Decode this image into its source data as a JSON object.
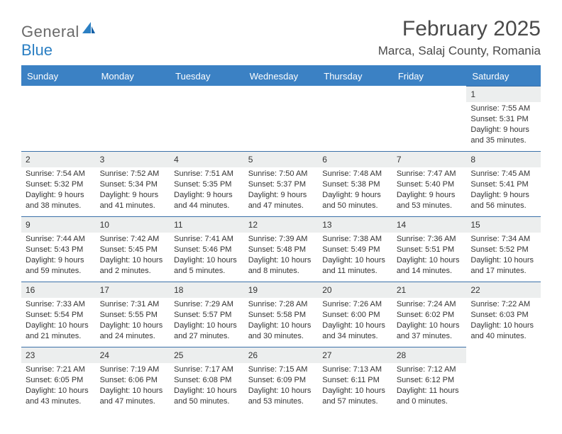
{
  "logo": {
    "text1": "General",
    "text2": "Blue"
  },
  "title": "February 2025",
  "location": "Marca, Salaj County, Romania",
  "colors": {
    "header_bg": "#3b81c4",
    "header_text": "#ffffff",
    "daynum_bg": "#eceeee",
    "border": "#3b71a8",
    "body_text": "#333333",
    "title_text": "#4a4a4a",
    "logo_gray": "#6a6a6a",
    "logo_blue": "#2b7fc3"
  },
  "weekdays": [
    "Sunday",
    "Monday",
    "Tuesday",
    "Wednesday",
    "Thursday",
    "Friday",
    "Saturday"
  ],
  "weeks": [
    [
      null,
      null,
      null,
      null,
      null,
      null,
      {
        "n": "1",
        "sr": "7:55 AM",
        "ss": "5:31 PM",
        "dl": "9 hours and 35 minutes."
      }
    ],
    [
      {
        "n": "2",
        "sr": "7:54 AM",
        "ss": "5:32 PM",
        "dl": "9 hours and 38 minutes."
      },
      {
        "n": "3",
        "sr": "7:52 AM",
        "ss": "5:34 PM",
        "dl": "9 hours and 41 minutes."
      },
      {
        "n": "4",
        "sr": "7:51 AM",
        "ss": "5:35 PM",
        "dl": "9 hours and 44 minutes."
      },
      {
        "n": "5",
        "sr": "7:50 AM",
        "ss": "5:37 PM",
        "dl": "9 hours and 47 minutes."
      },
      {
        "n": "6",
        "sr": "7:48 AM",
        "ss": "5:38 PM",
        "dl": "9 hours and 50 minutes."
      },
      {
        "n": "7",
        "sr": "7:47 AM",
        "ss": "5:40 PM",
        "dl": "9 hours and 53 minutes."
      },
      {
        "n": "8",
        "sr": "7:45 AM",
        "ss": "5:41 PM",
        "dl": "9 hours and 56 minutes."
      }
    ],
    [
      {
        "n": "9",
        "sr": "7:44 AM",
        "ss": "5:43 PM",
        "dl": "9 hours and 59 minutes."
      },
      {
        "n": "10",
        "sr": "7:42 AM",
        "ss": "5:45 PM",
        "dl": "10 hours and 2 minutes."
      },
      {
        "n": "11",
        "sr": "7:41 AM",
        "ss": "5:46 PM",
        "dl": "10 hours and 5 minutes."
      },
      {
        "n": "12",
        "sr": "7:39 AM",
        "ss": "5:48 PM",
        "dl": "10 hours and 8 minutes."
      },
      {
        "n": "13",
        "sr": "7:38 AM",
        "ss": "5:49 PM",
        "dl": "10 hours and 11 minutes."
      },
      {
        "n": "14",
        "sr": "7:36 AM",
        "ss": "5:51 PM",
        "dl": "10 hours and 14 minutes."
      },
      {
        "n": "15",
        "sr": "7:34 AM",
        "ss": "5:52 PM",
        "dl": "10 hours and 17 minutes."
      }
    ],
    [
      {
        "n": "16",
        "sr": "7:33 AM",
        "ss": "5:54 PM",
        "dl": "10 hours and 21 minutes."
      },
      {
        "n": "17",
        "sr": "7:31 AM",
        "ss": "5:55 PM",
        "dl": "10 hours and 24 minutes."
      },
      {
        "n": "18",
        "sr": "7:29 AM",
        "ss": "5:57 PM",
        "dl": "10 hours and 27 minutes."
      },
      {
        "n": "19",
        "sr": "7:28 AM",
        "ss": "5:58 PM",
        "dl": "10 hours and 30 minutes."
      },
      {
        "n": "20",
        "sr": "7:26 AM",
        "ss": "6:00 PM",
        "dl": "10 hours and 34 minutes."
      },
      {
        "n": "21",
        "sr": "7:24 AM",
        "ss": "6:02 PM",
        "dl": "10 hours and 37 minutes."
      },
      {
        "n": "22",
        "sr": "7:22 AM",
        "ss": "6:03 PM",
        "dl": "10 hours and 40 minutes."
      }
    ],
    [
      {
        "n": "23",
        "sr": "7:21 AM",
        "ss": "6:05 PM",
        "dl": "10 hours and 43 minutes."
      },
      {
        "n": "24",
        "sr": "7:19 AM",
        "ss": "6:06 PM",
        "dl": "10 hours and 47 minutes."
      },
      {
        "n": "25",
        "sr": "7:17 AM",
        "ss": "6:08 PM",
        "dl": "10 hours and 50 minutes."
      },
      {
        "n": "26",
        "sr": "7:15 AM",
        "ss": "6:09 PM",
        "dl": "10 hours and 53 minutes."
      },
      {
        "n": "27",
        "sr": "7:13 AM",
        "ss": "6:11 PM",
        "dl": "10 hours and 57 minutes."
      },
      {
        "n": "28",
        "sr": "7:12 AM",
        "ss": "6:12 PM",
        "dl": "11 hours and 0 minutes."
      },
      null
    ]
  ],
  "labels": {
    "sunrise": "Sunrise:",
    "sunset": "Sunset:",
    "daylight": "Daylight:"
  }
}
